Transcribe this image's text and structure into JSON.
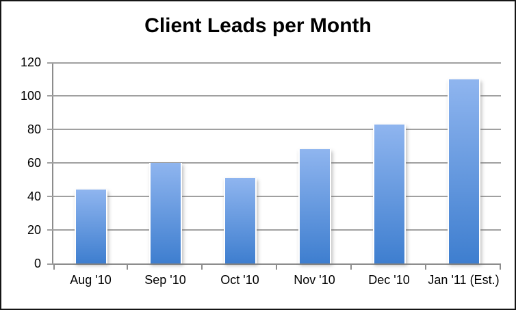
{
  "chart_data": {
    "type": "bar",
    "title": "Client Leads per Month",
    "categories": [
      "Aug '10",
      "Sep '10",
      "Oct '10",
      "Nov '10",
      "Dec '10",
      "Jan '11 (Est.)"
    ],
    "values": [
      44,
      60,
      51,
      68,
      83,
      110
    ],
    "xlabel": "",
    "ylabel": "",
    "ylim": [
      0,
      120
    ],
    "yticks": [
      0,
      20,
      40,
      60,
      80,
      100,
      120
    ],
    "grid": true,
    "legend": false,
    "colors": {
      "bar_gradient_top": "#8fb5ef",
      "bar_gradient_bottom": "#3e7ecf",
      "gridline": "#a0a0a0",
      "axis": "#8c8c8c",
      "title_text": "#000000",
      "frame_border": "#151515",
      "background": "#ffffff"
    }
  }
}
